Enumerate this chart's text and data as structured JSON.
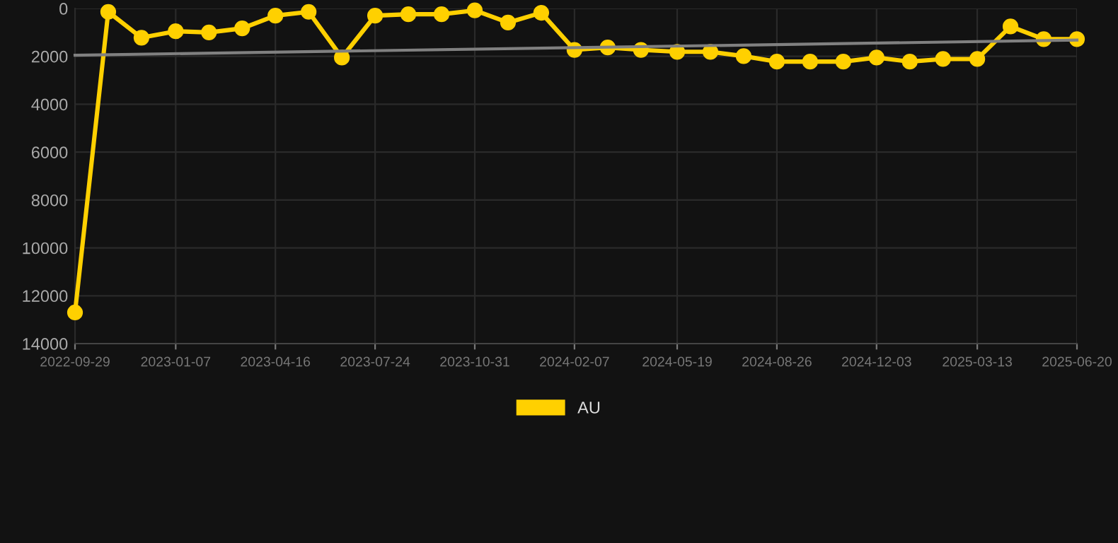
{
  "chart_data": {
    "type": "line",
    "x": [
      "2022-09-29",
      "2022-11-01",
      "2022-12-04",
      "2023-01-07",
      "2023-02-09",
      "2023-03-14",
      "2023-04-16",
      "2023-05-19",
      "2023-06-21",
      "2023-07-24",
      "2023-08-26",
      "2023-09-28",
      "2023-10-31",
      "2023-12-03",
      "2024-01-05",
      "2024-02-07",
      "2024-03-11",
      "2024-04-13",
      "2024-05-19",
      "2024-06-21",
      "2024-07-24",
      "2024-08-26",
      "2024-09-28",
      "2024-10-31",
      "2024-12-03",
      "2025-01-05",
      "2025-02-07",
      "2025-03-13",
      "2025-04-15",
      "2025-05-18",
      "2025-06-20"
    ],
    "series": [
      {
        "name": "AU",
        "color": "#ffd000",
        "marker": "circle",
        "values": [
          12700,
          140,
          1220,
          950,
          1000,
          830,
          300,
          140,
          2050,
          300,
          240,
          240,
          80,
          590,
          180,
          1730,
          1630,
          1730,
          1810,
          1810,
          1990,
          2220,
          2220,
          2220,
          2050,
          2220,
          2110,
          2110,
          750,
          1280,
          1280
        ]
      },
      {
        "color": "#808080",
        "marker": "none",
        "x": [
          "2022-09-29",
          "2025-06-20"
        ],
        "values": [
          1950,
          1320
        ]
      }
    ],
    "xlim": [
      "2022-09-29",
      "2025-06-20"
    ],
    "xticks": [
      "2022-09-29",
      "2023-01-07",
      "2023-04-16",
      "2023-07-24",
      "2023-10-31",
      "2024-02-07",
      "2024-05-19",
      "2024-08-26",
      "2024-12-03",
      "2025-03-13",
      "2025-06-20"
    ],
    "ylim": [
      14000,
      0
    ],
    "yticks": [
      0,
      2000,
      4000,
      6000,
      8000,
      10000,
      12000,
      14000
    ],
    "grid": true,
    "legend": "bottom"
  }
}
